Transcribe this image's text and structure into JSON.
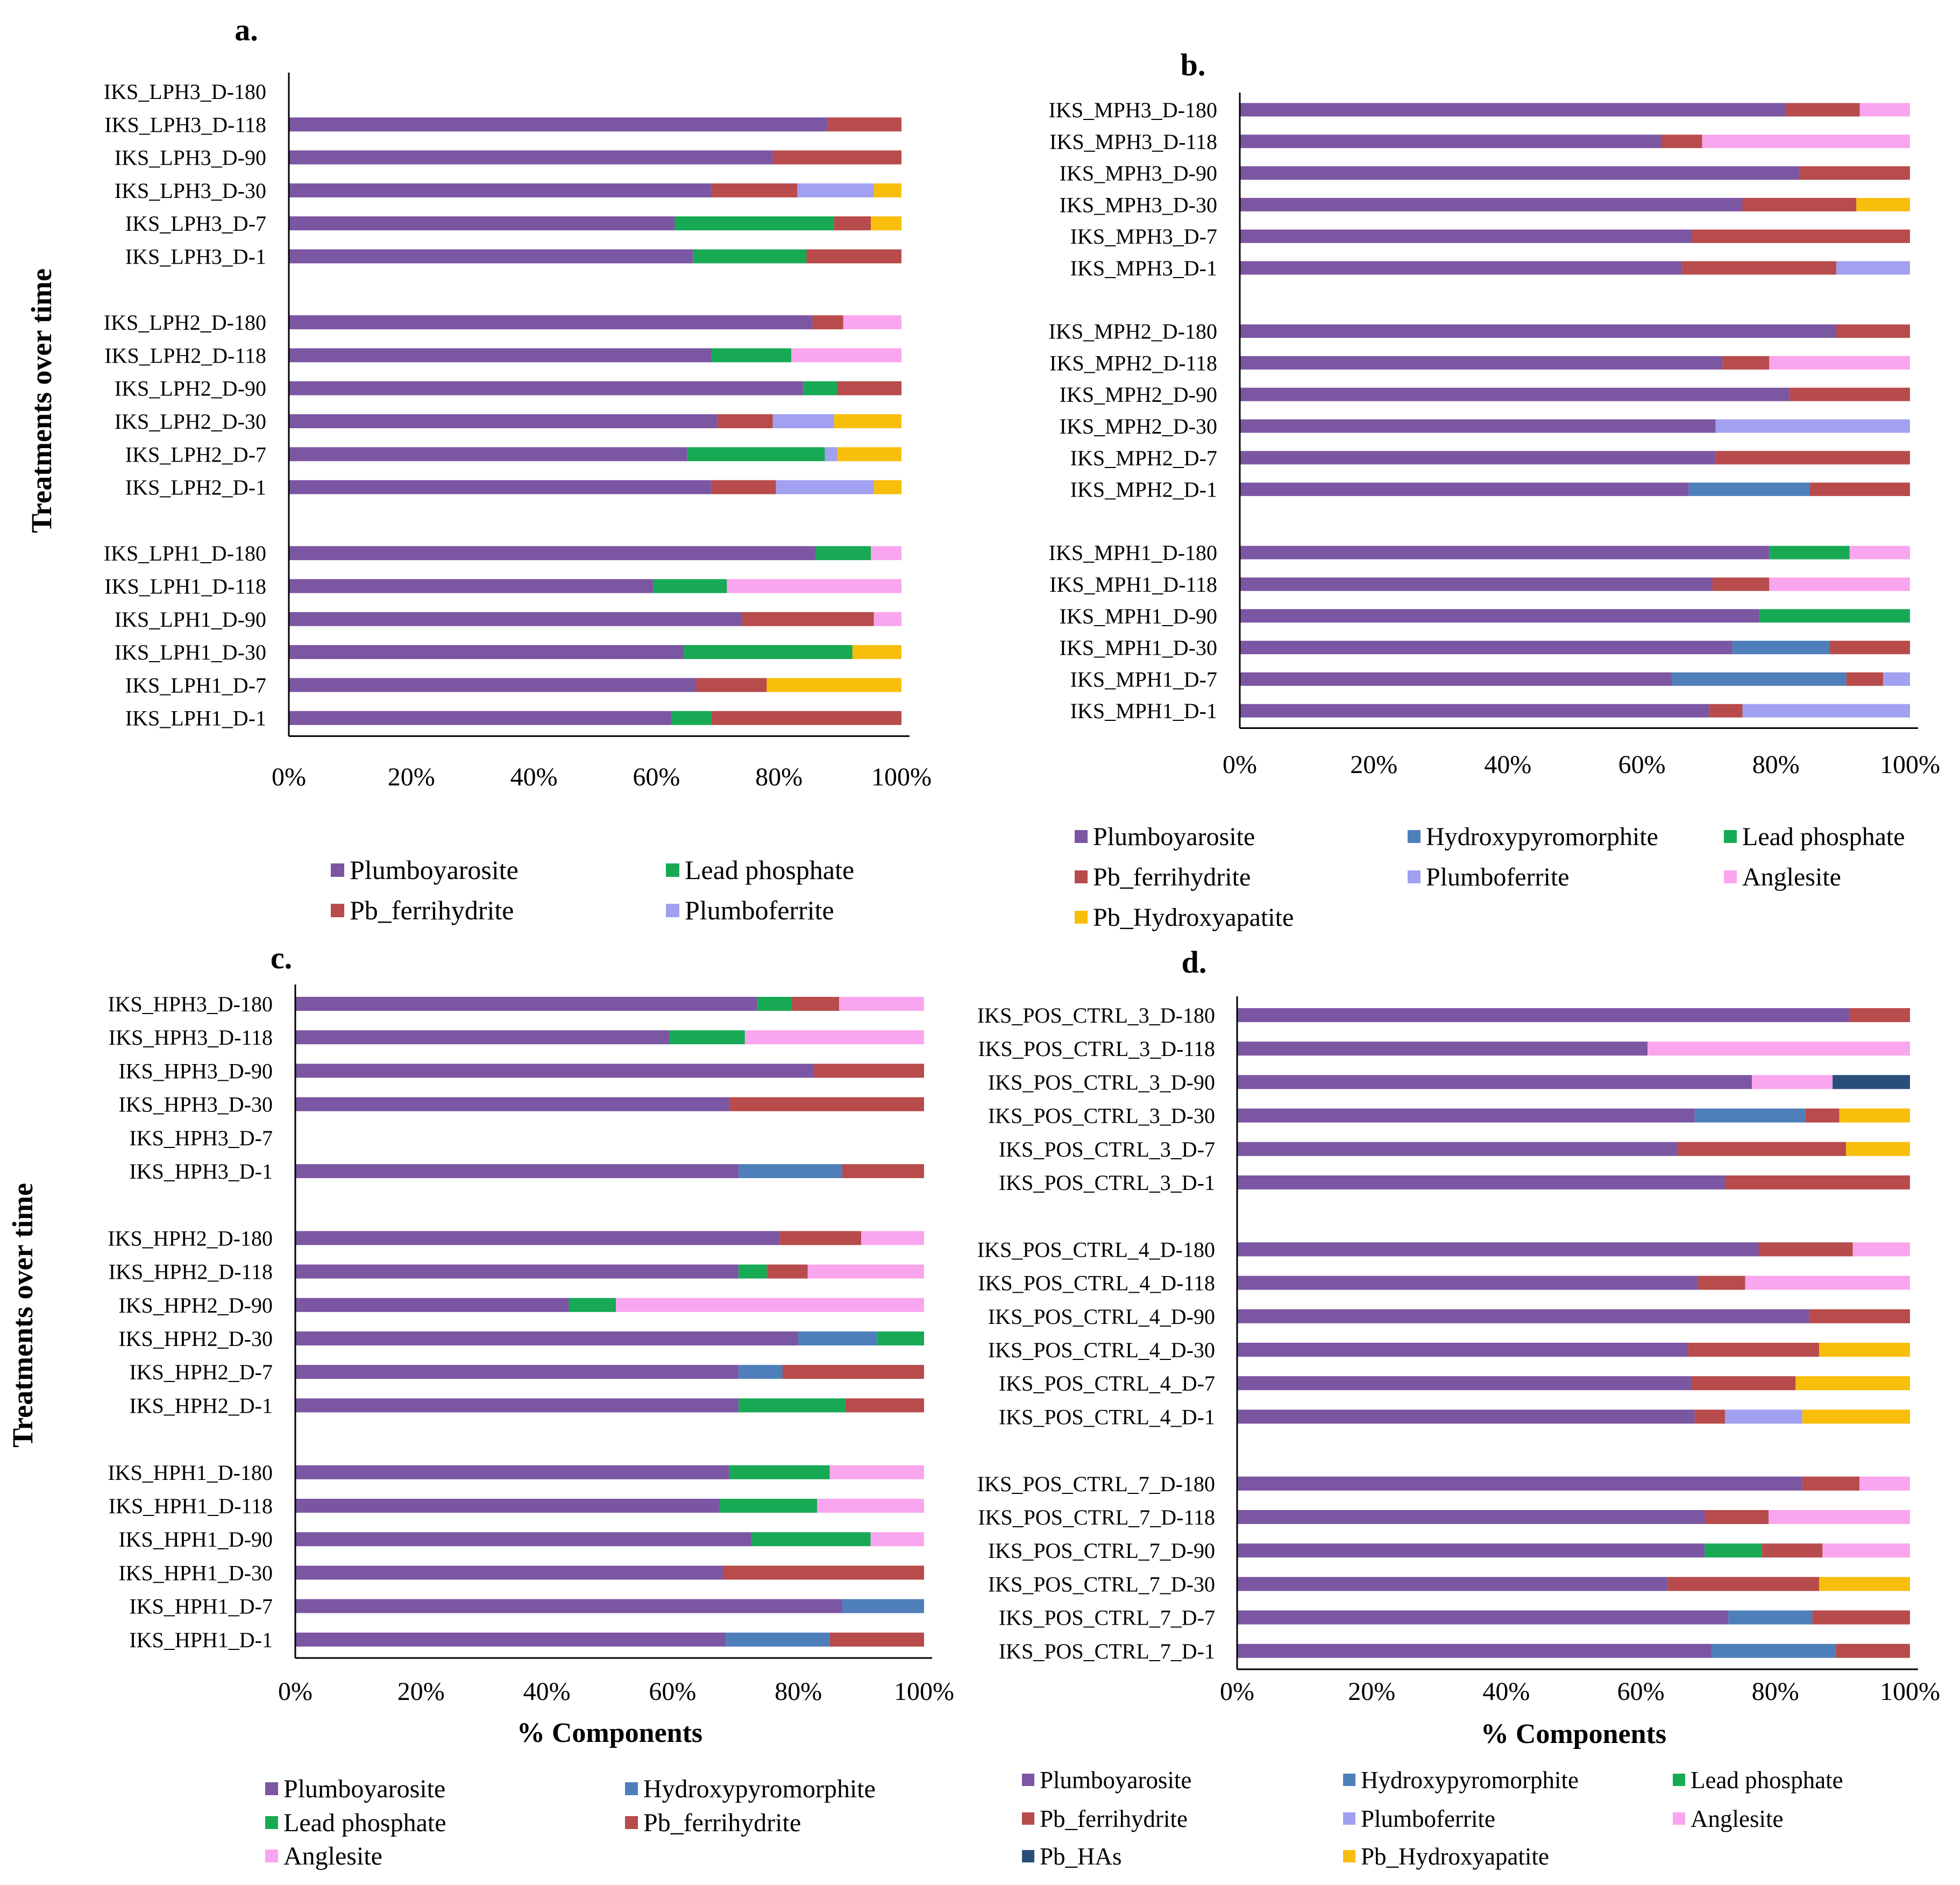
{
  "colors": {
    "Plumboyarosite": "#7b56a2",
    "Hydroxypyromorphite": "#4f7fba",
    "Lead phosphate": "#18a955",
    "Pb_ferrihydrite": "#b84b4b",
    "Plumboferrite": "#a1a0f1",
    "Anglesite": "#f9a6ee",
    "Pb_Hydroxyapatite": "#f8be0c",
    "Pb_HAs": "#294e7a"
  },
  "chart_data": [
    {
      "id": "a",
      "panel_label": "a.",
      "type": "bar",
      "orientation": "horizontal",
      "stacked": "percent",
      "ylabel": "Treatments over time",
      "xlabel": "",
      "xlim": [
        0,
        100
      ],
      "xticks": [
        "0%",
        "20%",
        "40%",
        "60%",
        "80%",
        "100%"
      ],
      "legend": [
        [
          "Plumboyarosite",
          "Lead phosphate"
        ],
        [
          "Pb_ferrihydrite",
          "Plumboferrite"
        ]
      ],
      "groups": [
        [
          {
            "label": "IKS_LPH3_D-180",
            "values": {}
          },
          {
            "label": "IKS_LPH3_D-118",
            "values": {
              "Plumboyarosite": 88,
              "Pb_ferrihydrite": 12
            }
          },
          {
            "label": "IKS_LPH3_D-90",
            "values": {
              "Plumboyarosite": 79,
              "Pb_ferrihydrite": 21
            }
          },
          {
            "label": "IKS_LPH3_D-30",
            "values": {
              "Plumboyarosite": 69,
              "Pb_ferrihydrite": 14,
              "Plumboferrite": 12.5,
              "Pb_Hydroxyapatite": 4.5
            }
          },
          {
            "label": "IKS_LPH3_D-7",
            "values": {
              "Plumboyarosite": 63,
              "Lead phosphate": 26,
              "Pb_ferrihydrite": 6,
              "Pb_Hydroxyapatite": 5
            }
          },
          {
            "label": "IKS_LPH3_D-1",
            "values": {
              "Plumboyarosite": 66,
              "Lead phosphate": 18.5,
              "Pb_ferrihydrite": 15.5
            }
          }
        ],
        [
          {
            "label": "IKS_LPH2_D-180",
            "values": {
              "Plumboyarosite": 85.5,
              "Pb_ferrihydrite": 5,
              "Anglesite": 9.5
            }
          },
          {
            "label": "IKS_LPH2_D-118",
            "values": {
              "Plumboyarosite": 69,
              "Lead phosphate": 13,
              "Anglesite": 18
            }
          },
          {
            "label": "IKS_LPH2_D-90",
            "values": {
              "Plumboyarosite": 84,
              "Lead phosphate": 5.5,
              "Pb_ferrihydrite": 10.5
            }
          },
          {
            "label": "IKS_LPH2_D-30",
            "values": {
              "Plumboyarosite": 70,
              "Pb_ferrihydrite": 9,
              "Plumboferrite": 10,
              "Pb_Hydroxyapatite": 11
            }
          },
          {
            "label": "IKS_LPH2_D-7",
            "values": {
              "Plumboyarosite": 65,
              "Lead phosphate": 22.5,
              "Plumboferrite": 2,
              "Pb_Hydroxyapatite": 10.5
            }
          },
          {
            "label": "IKS_LPH2_D-1",
            "values": {
              "Plumboyarosite": 69,
              "Pb_ferrihydrite": 10.5,
              "Plumboferrite": 16,
              "Pb_Hydroxyapatite": 4.5
            }
          }
        ],
        [
          {
            "label": "IKS_LPH1_D-180",
            "values": {
              "Plumboyarosite": 86,
              "Lead phosphate": 9,
              "Anglesite": 5
            }
          },
          {
            "label": "IKS_LPH1_D-118",
            "values": {
              "Plumboyarosite": 59.5,
              "Lead phosphate": 12,
              "Anglesite": 28.5
            }
          },
          {
            "label": "IKS_LPH1_D-90",
            "values": {
              "Plumboyarosite": 74,
              "Pb_ferrihydrite": 21.5,
              "Anglesite": 4.5
            }
          },
          {
            "label": "IKS_LPH1_D-30",
            "values": {
              "Plumboyarosite": 64.5,
              "Lead phosphate": 27.5,
              "Pb_Hydroxyapatite": 8
            }
          },
          {
            "label": "IKS_LPH1_D-7",
            "values": {
              "Plumboyarosite": 66.5,
              "Pb_ferrihydrite": 11.5,
              "Pb_Hydroxyapatite": 22
            }
          },
          {
            "label": "IKS_LPH1_D-1",
            "values": {
              "Plumboyarosite": 62.5,
              "Lead phosphate": 6.5,
              "Pb_ferrihydrite": 31
            }
          }
        ]
      ]
    },
    {
      "id": "b",
      "panel_label": "b.",
      "type": "bar",
      "orientation": "horizontal",
      "stacked": "percent",
      "ylabel": "",
      "xlabel": "",
      "xlim": [
        0,
        100
      ],
      "xticks": [
        "0%",
        "20%",
        "40%",
        "60%",
        "80%",
        "100%"
      ],
      "legend": [
        [
          "Plumboyarosite",
          "Hydroxypyromorphite",
          "Lead phosphate"
        ],
        [
          "Pb_ferrihydrite",
          "Plumboferrite",
          "Anglesite"
        ],
        [
          "Pb_Hydroxyapatite"
        ]
      ],
      "groups": [
        [
          {
            "label": "IKS_MPH3_D-180",
            "values": {
              "Plumboyarosite": 81.5,
              "Pb_ferrihydrite": 11,
              "Anglesite": 7.5
            }
          },
          {
            "label": "IKS_MPH3_D-118",
            "values": {
              "Plumboyarosite": 63,
              "Pb_ferrihydrite": 6,
              "Anglesite": 31
            }
          },
          {
            "label": "IKS_MPH3_D-90",
            "values": {
              "Plumboyarosite": 83.5,
              "Pb_ferrihydrite": 16.5
            }
          },
          {
            "label": "IKS_MPH3_D-30",
            "values": {
              "Plumboyarosite": 75,
              "Pb_ferrihydrite": 17,
              "Pb_Hydroxyapatite": 8
            }
          },
          {
            "label": "IKS_MPH3_D-7",
            "values": {
              "Plumboyarosite": 67.5,
              "Pb_ferrihydrite": 32.5
            }
          },
          {
            "label": "IKS_MPH3_D-1",
            "values": {
              "Plumboyarosite": 66,
              "Pb_ferrihydrite": 23,
              "Plumboferrite": 11
            }
          }
        ],
        [
          {
            "label": "IKS_MPH2_D-180",
            "values": {
              "Plumboyarosite": 89,
              "Pb_ferrihydrite": 11
            }
          },
          {
            "label": "IKS_MPH2_D-118",
            "values": {
              "Plumboyarosite": 72,
              "Pb_ferrihydrite": 7,
              "Anglesite": 21
            }
          },
          {
            "label": "IKS_MPH2_D-90",
            "values": {
              "Plumboyarosite": 82,
              "Pb_ferrihydrite": 18
            }
          },
          {
            "label": "IKS_MPH2_D-30",
            "values": {
              "Plumboyarosite": 71,
              "Plumboferrite": 29
            }
          },
          {
            "label": "IKS_MPH2_D-7",
            "values": {
              "Plumboyarosite": 71,
              "Pb_ferrihydrite": 29
            }
          },
          {
            "label": "IKS_MPH2_D-1",
            "values": {
              "Plumboyarosite": 67,
              "Hydroxypyromorphite": 18,
              "Pb_ferrihydrite": 15
            }
          }
        ],
        [
          {
            "label": "IKS_MPH1_D-180",
            "values": {
              "Plumboyarosite": 79,
              "Lead phosphate": 12,
              "Anglesite": 9
            }
          },
          {
            "label": "IKS_MPH1_D-118",
            "values": {
              "Plumboyarosite": 70.5,
              "Pb_ferrihydrite": 8.5,
              "Anglesite": 21
            }
          },
          {
            "label": "IKS_MPH1_D-90",
            "values": {
              "Plumboyarosite": 77.5,
              "Lead phosphate": 22.5
            }
          },
          {
            "label": "IKS_MPH1_D-30",
            "values": {
              "Plumboyarosite": 73.5,
              "Hydroxypyromorphite": 14.5,
              "Pb_ferrihydrite": 12
            }
          },
          {
            "label": "IKS_MPH1_D-7",
            "values": {
              "Plumboyarosite": 64.5,
              "Hydroxypyromorphite": 26,
              "Pb_ferrihydrite": 5.5,
              "Plumboferrite": 4
            }
          },
          {
            "label": "IKS_MPH1_D-1",
            "values": {
              "Plumboyarosite": 70,
              "Pb_ferrihydrite": 5,
              "Plumboferrite": 25
            }
          }
        ]
      ]
    },
    {
      "id": "c",
      "panel_label": "c.",
      "type": "bar",
      "orientation": "horizontal",
      "stacked": "percent",
      "ylabel": "Treatments over time",
      "xlabel": "% Components",
      "xlim": [
        0,
        100
      ],
      "xticks": [
        "0%",
        "20%",
        "40%",
        "60%",
        "80%",
        "100%"
      ],
      "legend": [
        [
          "Plumboyarosite",
          "Hydroxypyromorphite"
        ],
        [
          "Lead phosphate",
          "Pb_ferrihydrite"
        ],
        [
          "Anglesite"
        ]
      ],
      "groups": [
        [
          {
            "label": "IKS_HPH3_D-180",
            "values": {
              "Plumboyarosite": 73.5,
              "Lead phosphate": 5.5,
              "Pb_ferrihydrite": 7.5,
              "Anglesite": 13.5
            }
          },
          {
            "label": "IKS_HPH3_D-118",
            "values": {
              "Plumboyarosite": 59.5,
              "Lead phosphate": 12,
              "Anglesite": 28.5
            }
          },
          {
            "label": "IKS_HPH3_D-90",
            "values": {
              "Plumboyarosite": 82.5,
              "Pb_ferrihydrite": 17.5
            }
          },
          {
            "label": "IKS_HPH3_D-30",
            "values": {
              "Plumboyarosite": 69,
              "Pb_ferrihydrite": 31
            }
          },
          {
            "label": "IKS_HPH3_D-7",
            "values": {}
          },
          {
            "label": "IKS_HPH3_D-1",
            "values": {
              "Plumboyarosite": 70.5,
              "Hydroxypyromorphite": 16.5,
              "Pb_ferrihydrite": 13
            }
          }
        ],
        [
          {
            "label": "IKS_HPH2_D-180",
            "values": {
              "Plumboyarosite": 77,
              "Pb_ferrihydrite": 13,
              "Anglesite": 10
            }
          },
          {
            "label": "IKS_HPH2_D-118",
            "values": {
              "Plumboyarosite": 70.5,
              "Lead phosphate": 4.5,
              "Pb_ferrihydrite": 6.5,
              "Anglesite": 18.5
            }
          },
          {
            "label": "IKS_HPH2_D-90",
            "values": {
              "Plumboyarosite": 43.5,
              "Lead phosphate": 7.5,
              "Anglesite": 49
            }
          },
          {
            "label": "IKS_HPH2_D-30",
            "values": {
              "Plumboyarosite": 80,
              "Hydroxypyromorphite": 12.5,
              "Lead phosphate": 7.5
            }
          },
          {
            "label": "IKS_HPH2_D-7",
            "values": {
              "Plumboyarosite": 70.5,
              "Hydroxypyromorphite": 7,
              "Pb_ferrihydrite": 22.5
            }
          },
          {
            "label": "IKS_HPH2_D-1",
            "values": {
              "Plumboyarosite": 70.5,
              "Lead phosphate": 17,
              "Pb_ferrihydrite": 12.5
            }
          }
        ],
        [
          {
            "label": "IKS_HPH1_D-180",
            "values": {
              "Plumboyarosite": 69,
              "Lead phosphate": 16,
              "Anglesite": 15
            }
          },
          {
            "label": "IKS_HPH1_D-118",
            "values": {
              "Plumboyarosite": 67.5,
              "Lead phosphate": 15.5,
              "Anglesite": 17
            }
          },
          {
            "label": "IKS_HPH1_D-90",
            "values": {
              "Plumboyarosite": 72.5,
              "Lead phosphate": 19,
              "Anglesite": 8.5
            }
          },
          {
            "label": "IKS_HPH1_D-30",
            "values": {
              "Plumboyarosite": 68,
              "Pb_ferrihydrite": 32
            }
          },
          {
            "label": "IKS_HPH1_D-7",
            "values": {
              "Plumboyarosite": 87,
              "Hydroxypyromorphite": 13
            }
          },
          {
            "label": "IKS_HPH1_D-1",
            "values": {
              "Plumboyarosite": 68.5,
              "Hydroxypyromorphite": 16.5,
              "Pb_ferrihydrite": 15
            }
          }
        ]
      ]
    },
    {
      "id": "d",
      "panel_label": "d.",
      "type": "bar",
      "orientation": "horizontal",
      "stacked": "percent",
      "ylabel": "",
      "xlabel": "% Components",
      "xlim": [
        0,
        100
      ],
      "xticks": [
        "0%",
        "20%",
        "40%",
        "60%",
        "80%",
        "100%"
      ],
      "legend": [
        [
          "Plumboyarosite",
          "Hydroxypyromorphite",
          "Lead phosphate"
        ],
        [
          "Pb_ferrihydrite",
          "Plumboferrite",
          "Anglesite"
        ],
        [
          "Pb_HAs",
          "Pb_Hydroxyapatite"
        ]
      ],
      "groups": [
        [
          {
            "label": "IKS_POS_CTRL_3_D-180",
            "values": {
              "Plumboyarosite": 91,
              "Pb_ferrihydrite": 9
            }
          },
          {
            "label": "IKS_POS_CTRL_3_D-118",
            "values": {
              "Plumboyarosite": 61,
              "Anglesite": 39
            }
          },
          {
            "label": "IKS_POS_CTRL_3_D-90",
            "values": {
              "Plumboyarosite": 76.5,
              "Anglesite": 12,
              "Pb_HAs": 11.5
            }
          },
          {
            "label": "IKS_POS_CTRL_3_D-30",
            "values": {
              "Plumboyarosite": 68,
              "Hydroxypyromorphite": 16.5,
              "Pb_ferrihydrite": 5,
              "Pb_Hydroxyapatite": 10.5
            }
          },
          {
            "label": "IKS_POS_CTRL_3_D-7",
            "values": {
              "Plumboyarosite": 65.5,
              "Pb_ferrihydrite": 25,
              "Pb_Hydroxyapatite": 9.5
            }
          },
          {
            "label": "IKS_POS_CTRL_3_D-1",
            "values": {
              "Plumboyarosite": 72.5,
              "Pb_ferrihydrite": 27.5
            }
          }
        ],
        [
          {
            "label": "IKS_POS_CTRL_4_D-180",
            "values": {
              "Plumboyarosite": 77.5,
              "Pb_ferrihydrite": 14,
              "Anglesite": 8.5
            }
          },
          {
            "label": "IKS_POS_CTRL_4_D-118",
            "values": {
              "Plumboyarosite": 68.5,
              "Pb_ferrihydrite": 7,
              "Anglesite": 24.5
            }
          },
          {
            "label": "IKS_POS_CTRL_4_D-90",
            "values": {
              "Plumboyarosite": 85,
              "Pb_ferrihydrite": 15
            }
          },
          {
            "label": "IKS_POS_CTRL_4_D-30",
            "values": {
              "Plumboyarosite": 67,
              "Pb_ferrihydrite": 19.5,
              "Pb_Hydroxyapatite": 13.5
            }
          },
          {
            "label": "IKS_POS_CTRL_4_D-7",
            "values": {
              "Plumboyarosite": 67.5,
              "Pb_ferrihydrite": 15.5,
              "Pb_Hydroxyapatite": 17
            }
          },
          {
            "label": "IKS_POS_CTRL_4_D-1",
            "values": {
              "Plumboyarosite": 68,
              "Pb_ferrihydrite": 4.5,
              "Plumboferrite": 11.5,
              "Pb_Hydroxyapatite": 16
            }
          }
        ],
        [
          {
            "label": "IKS_POS_CTRL_7_D-180",
            "values": {
              "Plumboyarosite": 84,
              "Pb_ferrihydrite": 8.5,
              "Anglesite": 7.5
            }
          },
          {
            "label": "IKS_POS_CTRL_7_D-118",
            "values": {
              "Plumboyarosite": 69.5,
              "Pb_ferrihydrite": 9.5,
              "Anglesite": 21
            }
          },
          {
            "label": "IKS_POS_CTRL_7_D-90",
            "values": {
              "Plumboyarosite": 69.5,
              "Lead phosphate": 8.5,
              "Pb_ferrihydrite": 9,
              "Anglesite": 13
            }
          },
          {
            "label": "IKS_POS_CTRL_7_D-30",
            "values": {
              "Plumboyarosite": 64,
              "Pb_ferrihydrite": 22.5,
              "Pb_Hydroxyapatite": 13.5
            }
          },
          {
            "label": "IKS_POS_CTRL_7_D-7",
            "values": {
              "Plumboyarosite": 73,
              "Hydroxypyromorphite": 12.5,
              "Pb_ferrihydrite": 14.5
            }
          },
          {
            "label": "IKS_POS_CTRL_7_D-1",
            "values": {
              "Plumboyarosite": 70.5,
              "Hydroxypyromorphite": 18.5,
              "Pb_ferrihydrite": 11
            }
          }
        ]
      ]
    }
  ]
}
